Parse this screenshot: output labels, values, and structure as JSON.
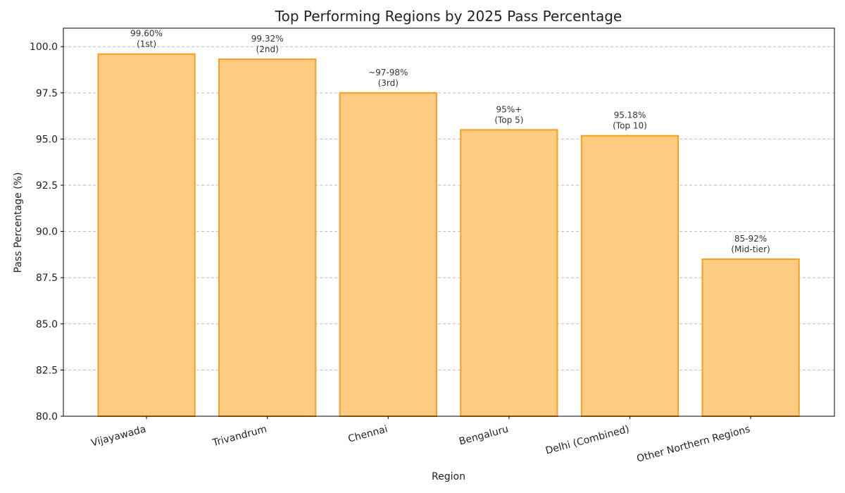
{
  "chart_data": {
    "type": "bar",
    "title": "Top Performing Regions by 2025 Pass Percentage",
    "x_label": "Region",
    "y_label": "Pass Percentage (%)",
    "categories": [
      "Vijayawada",
      "Trivandrum",
      "Chennai",
      "Bengaluru",
      "Delhi (Combined)",
      "Other Northern Regions"
    ],
    "values": [
      99.6,
      99.32,
      97.5,
      95.5,
      95.18,
      88.5
    ],
    "value_labels": [
      [
        "99.60%",
        "(1st)"
      ],
      [
        "99.32%",
        "(2nd)"
      ],
      [
        "~97-98%",
        "(3rd)"
      ],
      [
        "95%+",
        "(Top 5)"
      ],
      [
        "95.18%",
        "(Top 10)"
      ],
      [
        "85-92%",
        "(Mid-tier)"
      ]
    ],
    "color": "#fdcb81",
    "edge_color": "#f5a020",
    "ylim": [
      80,
      101
    ],
    "yticks": [
      {
        "value": 80,
        "label": "80.0"
      },
      82.5,
      {
        "value": 85,
        "label": "85.0"
      },
      87.5,
      {
        "value": 90,
        "label": "90.0"
      },
      92.5,
      {
        "value": 95,
        "label": "95.0"
      },
      97.5,
      {
        "value": 100,
        "label": "100.0"
      }
    ],
    "grid": true
  }
}
